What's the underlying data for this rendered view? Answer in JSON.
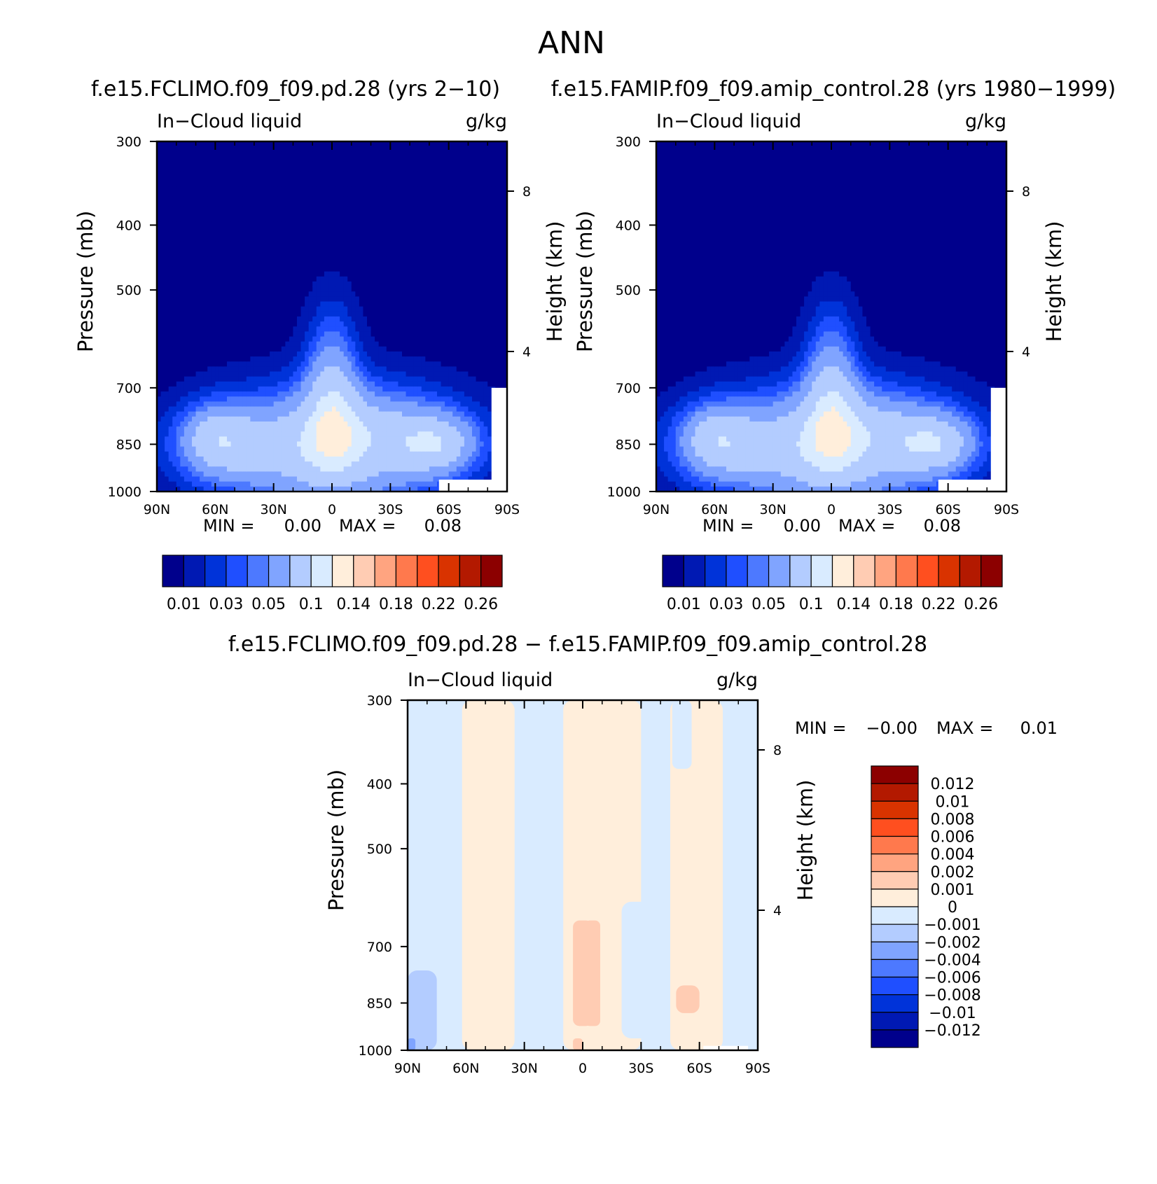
{
  "figure": {
    "title": "ANN",
    "diff_title": "f.e15.FCLIMO.f09_f09.pd.28 − f.e15.FAMIP.f09_f09.amip_control.28"
  },
  "colors": {
    "abs_scale": [
      "#00008c",
      "#0019b3",
      "#0033d9",
      "#1f4fff",
      "#4d79ff",
      "#80a4ff",
      "#b3ccff",
      "#d9ebff",
      "#ffeedb",
      "#ffccb3",
      "#ffa480",
      "#ff794d",
      "#ff4f1f",
      "#d93300",
      "#b31900",
      "#8c0000"
    ],
    "diff_scale": [
      "#8c0000",
      "#b31900",
      "#d93300",
      "#ff4f1f",
      "#ff794d",
      "#ffa480",
      "#ffccb3",
      "#ffeedb",
      "#d9ebff",
      "#b3ccff",
      "#80a4ff",
      "#4d79ff",
      "#1f4fff",
      "#0033d9",
      "#0019b3",
      "#00008c"
    ]
  },
  "chart_data": [
    {
      "type": "heatmap",
      "panel": "top-left",
      "title": "f.e15.FCLIMO.f09_f09.pd.28 (yrs 2−10)",
      "variable": "In−Cloud liquid",
      "units": "g/kg",
      "xlabel": "",
      "ylabel": "Pressure (mb)",
      "y2label": "Height (km)",
      "x_ticks": [
        "90N",
        "60N",
        "30N",
        "0",
        "30S",
        "60S",
        "90S"
      ],
      "y_ticks": [
        "300",
        "400",
        "500",
        "700",
        "850",
        "1000"
      ],
      "y2_ticks": [
        "8",
        "4"
      ],
      "x_range": [
        90,
        -90
      ],
      "y_range": [
        300,
        1000
      ],
      "y_scale": "log",
      "min_label": "MIN =",
      "min_value": "0.00",
      "max_label": "MAX =",
      "max_value": "0.08",
      "levels": [
        "0.01",
        "0.03",
        "0.05",
        "0.1",
        "0.14",
        "0.18",
        "0.22",
        "0.26"
      ],
      "blobs": [
        {
          "lat": 0,
          "p": 860,
          "wlat": 60,
          "hlogp": 0.22,
          "amp": 0.075,
          "skew": 0
        },
        {
          "lat": 0,
          "p": 700,
          "wlat": 14,
          "hlogp": 0.28,
          "amp": 0.055,
          "skew": 0
        },
        {
          "lat": -55,
          "p": 850,
          "wlat": 20,
          "hlogp": 0.1,
          "amp": 0.05,
          "skew": 0
        },
        {
          "lat": 60,
          "p": 830,
          "wlat": 18,
          "hlogp": 0.12,
          "amp": 0.045,
          "skew": 0
        },
        {
          "lat": 50,
          "p": 860,
          "wlat": 40,
          "hlogp": 0.14,
          "amp": 0.025,
          "skew": 0
        },
        {
          "lat": -30,
          "p": 820,
          "wlat": 45,
          "hlogp": 0.15,
          "amp": 0.025,
          "skew": 0
        }
      ],
      "missing": [
        {
          "lat0": -55,
          "lat1": -90,
          "p0": 960,
          "p1": 1000
        },
        {
          "lat0": -82,
          "lat1": -90,
          "p0": 700,
          "p1": 1000
        }
      ]
    },
    {
      "type": "heatmap",
      "panel": "top-right",
      "title": "f.e15.FAMIP.f09_f09.amip_control.28 (yrs 1980−1999)",
      "variable": "In−Cloud liquid",
      "units": "g/kg",
      "xlabel": "",
      "ylabel": "Pressure (mb)",
      "y2label": "Height (km)",
      "x_ticks": [
        "90N",
        "60N",
        "30N",
        "0",
        "30S",
        "60S",
        "90S"
      ],
      "y_ticks": [
        "300",
        "400",
        "500",
        "700",
        "850",
        "1000"
      ],
      "y2_ticks": [
        "8",
        "4"
      ],
      "x_range": [
        90,
        -90
      ],
      "y_range": [
        300,
        1000
      ],
      "y_scale": "log",
      "min_label": "MIN =",
      "min_value": "0.00",
      "max_label": "MAX =",
      "max_value": "0.08",
      "levels": [
        "0.01",
        "0.03",
        "0.05",
        "0.1",
        "0.14",
        "0.18",
        "0.22",
        "0.26"
      ],
      "blobs": [
        {
          "lat": 0,
          "p": 860,
          "wlat": 60,
          "hlogp": 0.22,
          "amp": 0.075,
          "skew": 0
        },
        {
          "lat": 0,
          "p": 700,
          "wlat": 14,
          "hlogp": 0.28,
          "amp": 0.055,
          "skew": 0
        },
        {
          "lat": -55,
          "p": 850,
          "wlat": 20,
          "hlogp": 0.1,
          "amp": 0.05,
          "skew": 0
        },
        {
          "lat": 60,
          "p": 830,
          "wlat": 18,
          "hlogp": 0.12,
          "amp": 0.045,
          "skew": 0
        },
        {
          "lat": 50,
          "p": 860,
          "wlat": 40,
          "hlogp": 0.14,
          "amp": 0.025,
          "skew": 0
        },
        {
          "lat": -30,
          "p": 820,
          "wlat": 45,
          "hlogp": 0.15,
          "amp": 0.025,
          "skew": 0
        }
      ],
      "missing": [
        {
          "lat0": -55,
          "lat1": -90,
          "p0": 960,
          "p1": 1000
        },
        {
          "lat0": -82,
          "lat1": -90,
          "p0": 700,
          "p1": 1000
        }
      ]
    },
    {
      "type": "heatmap",
      "panel": "bottom",
      "title": "",
      "variable": "In−Cloud liquid",
      "units": "g/kg",
      "xlabel": "",
      "ylabel": "Pressure (mb)",
      "y2label": "Height (km)",
      "x_ticks": [
        "90N",
        "60N",
        "30N",
        "0",
        "30S",
        "60S",
        "90S"
      ],
      "y_ticks": [
        "300",
        "400",
        "500",
        "700",
        "850",
        "1000"
      ],
      "y2_ticks": [
        "8",
        "4"
      ],
      "x_range": [
        90,
        -90
      ],
      "y_range": [
        300,
        1000
      ],
      "y_scale": "log",
      "min_label": "MIN =",
      "min_value": "−0.00",
      "max_label": "MAX =",
      "max_value": "0.01",
      "levels": [
        "0.012",
        "0.01",
        "0.008",
        "0.006",
        "0.004",
        "0.002",
        "0.001",
        "0",
        "−0.001",
        "−0.002",
        "−0.004",
        "−0.006",
        "−0.008",
        "−0.01",
        "−0.012"
      ],
      "regions": [
        {
          "lat0": 90,
          "lat1": 62,
          "p0": 300,
          "p1": 1000,
          "value": -0.0005
        },
        {
          "lat0": 62,
          "lat1": 35,
          "p0": 300,
          "p1": 1000,
          "value": 0.0005
        },
        {
          "lat0": 35,
          "lat1": 18,
          "p0": 600,
          "p1": 1000,
          "value": -0.0005
        },
        {
          "lat0": 18,
          "lat1": 10,
          "p0": 430,
          "p1": 560,
          "value": -0.0005
        },
        {
          "lat0": 10,
          "lat1": -30,
          "p0": 300,
          "p1": 1000,
          "value": 0.0005
        },
        {
          "lat0": -20,
          "lat1": -45,
          "p0": 600,
          "p1": 960,
          "value": -0.0005
        },
        {
          "lat0": -45,
          "lat1": -72,
          "p0": 300,
          "p1": 1000,
          "value": 0.0005
        },
        {
          "lat0": -72,
          "lat1": -90,
          "p0": 300,
          "p1": 1000,
          "value": -0.0005
        },
        {
          "lat0": -46,
          "lat1": -56,
          "p0": 300,
          "p1": 380,
          "value": -0.0005
        },
        {
          "lat0": 90,
          "lat1": 75,
          "p0": 760,
          "p1": 1000,
          "value": -0.0015
        },
        {
          "lat0": 90,
          "lat1": 86,
          "p0": 960,
          "p1": 1000,
          "value": -0.003
        },
        {
          "lat0": 5,
          "lat1": -5,
          "p0": 640,
          "p1": 920,
          "value": 0.0015
        },
        {
          "lat0": -1,
          "lat1": -9,
          "p0": 640,
          "p1": 920,
          "value": 0.0015
        },
        {
          "lat0": -48,
          "lat1": -60,
          "p0": 800,
          "p1": 880,
          "value": 0.0015
        },
        {
          "lat0": 5,
          "lat1": 0,
          "p0": 960,
          "p1": 1000,
          "value": 0.0015
        }
      ],
      "missing": [
        {
          "lat0": -62,
          "lat1": -85,
          "p0": 985,
          "p1": 1000
        }
      ]
    }
  ]
}
